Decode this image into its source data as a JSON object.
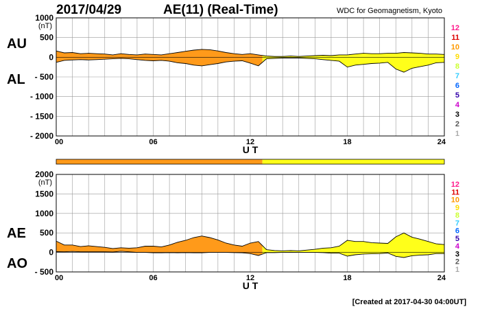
{
  "header": {
    "date": "2017/04/29",
    "title": "AE(11) (Real-Time)",
    "source": "WDC for Geomagnetism, Kyoto"
  },
  "footer": {
    "created": "[Created at 2017-04-30 04:00UT]"
  },
  "colors": {
    "orange": "#ff9a1a",
    "yellow": "#ffff1a",
    "grid": "#999999"
  },
  "station_scale": {
    "labels": [
      "12",
      "11",
      "10",
      "9",
      "8",
      "7",
      "6",
      "5",
      "4",
      "3",
      "2",
      "1"
    ],
    "colors": [
      "#ff1a8c",
      "#dd0000",
      "#ff9900",
      "#ffdd00",
      "#ccff33",
      "#33ccff",
      "#0066ff",
      "#3300aa",
      "#cc00cc",
      "#000000",
      "#555555",
      "#aaaaaa"
    ]
  },
  "chart_data": [
    {
      "type": "area",
      "panel": "AU/AL",
      "series_labels": [
        "AU",
        "AL"
      ],
      "unit": "(nT)",
      "xlabel": "U T",
      "xlim": [
        0,
        24
      ],
      "xticks": [
        "00",
        "06",
        "12",
        "18",
        "24"
      ],
      "ylim": [
        -2000,
        1000
      ],
      "yticks": [
        "1000",
        "500",
        "0",
        "- 500",
        "- 1000",
        "- 1500",
        "- 2000"
      ],
      "ytick_values": [
        1000,
        500,
        0,
        -500,
        -1000,
        -1500,
        -2000
      ],
      "grid": true,
      "color_change_hour": 12.75,
      "x": [
        0,
        0.5,
        1,
        1.5,
        2,
        2.5,
        3,
        3.5,
        4,
        4.5,
        5,
        5.5,
        6,
        6.5,
        7,
        7.5,
        8,
        8.5,
        9,
        9.5,
        10,
        10.5,
        11,
        11.5,
        12,
        12.5,
        13,
        13.5,
        14,
        14.5,
        15,
        15.5,
        16,
        16.5,
        17,
        17.5,
        18,
        18.5,
        19,
        19.5,
        20,
        20.5,
        21,
        21.5,
        22,
        22.5,
        23,
        23.5,
        24
      ],
      "series": [
        {
          "name": "AU",
          "values": [
            160,
            110,
            120,
            90,
            100,
            90,
            80,
            60,
            90,
            70,
            60,
            80,
            70,
            60,
            90,
            120,
            150,
            180,
            200,
            190,
            160,
            120,
            90,
            70,
            90,
            60,
            30,
            20,
            20,
            30,
            20,
            30,
            40,
            50,
            40,
            60,
            60,
            80,
            100,
            90,
            90,
            100,
            100,
            120,
            110,
            100,
            80,
            80,
            70
          ]
        },
        {
          "name": "AL",
          "values": [
            -130,
            -80,
            -70,
            -60,
            -70,
            -60,
            -50,
            -40,
            -30,
            -40,
            -60,
            -80,
            -90,
            -80,
            -100,
            -140,
            -160,
            -200,
            -220,
            -190,
            -160,
            -120,
            -100,
            -90,
            -150,
            -220,
            -40,
            -30,
            -20,
            -20,
            -20,
            -30,
            -40,
            -60,
            -80,
            -100,
            -250,
            -200,
            -180,
            -160,
            -150,
            -130,
            -300,
            -380,
            -280,
            -240,
            -200,
            -140,
            -130
          ]
        }
      ]
    },
    {
      "type": "area",
      "panel": "AE/AO",
      "series_labels": [
        "AE",
        "AO"
      ],
      "unit": "(nT)",
      "xlabel": "U T",
      "xlim": [
        0,
        24
      ],
      "xticks": [
        "00",
        "06",
        "12",
        "18",
        "24"
      ],
      "ylim": [
        -500,
        2000
      ],
      "yticks": [
        "2000",
        "1500",
        "1000",
        "500",
        "0",
        "- 500"
      ],
      "ytick_values": [
        2000,
        1500,
        1000,
        500,
        0,
        -500
      ],
      "grid": true,
      "color_change_hour": 12.75,
      "x": [
        0,
        0.5,
        1,
        1.5,
        2,
        2.5,
        3,
        3.5,
        4,
        4.5,
        5,
        5.5,
        6,
        6.5,
        7,
        7.5,
        8,
        8.5,
        9,
        9.5,
        10,
        10.5,
        11,
        11.5,
        12,
        12.5,
        13,
        13.5,
        14,
        14.5,
        15,
        15.5,
        16,
        16.5,
        17,
        17.5,
        18,
        18.5,
        19,
        19.5,
        20,
        20.5,
        21,
        21.5,
        22,
        22.5,
        23,
        23.5,
        24
      ],
      "series": [
        {
          "name": "AE",
          "values": [
            290,
            190,
            190,
            150,
            170,
            150,
            130,
            100,
            120,
            110,
            120,
            160,
            160,
            140,
            190,
            260,
            310,
            380,
            420,
            380,
            320,
            240,
            190,
            160,
            240,
            280,
            70,
            50,
            40,
            50,
            40,
            60,
            80,
            110,
            120,
            160,
            310,
            280,
            280,
            250,
            240,
            230,
            400,
            500,
            390,
            340,
            280,
            220,
            200
          ]
        },
        {
          "name": "AO",
          "values": [
            20,
            15,
            25,
            15,
            15,
            15,
            15,
            10,
            30,
            15,
            0,
            0,
            -10,
            -10,
            -5,
            -10,
            -5,
            -10,
            -10,
            0,
            0,
            0,
            -5,
            -10,
            -30,
            -80,
            -5,
            -5,
            0,
            5,
            0,
            0,
            0,
            -5,
            -20,
            -20,
            -95,
            -60,
            -40,
            -35,
            -30,
            -15,
            -100,
            -130,
            -85,
            -70,
            -60,
            -30,
            -30
          ]
        }
      ]
    }
  ],
  "timeline_bar": {
    "color_change_hour": 12.75,
    "xlim": [
      0,
      24
    ]
  }
}
